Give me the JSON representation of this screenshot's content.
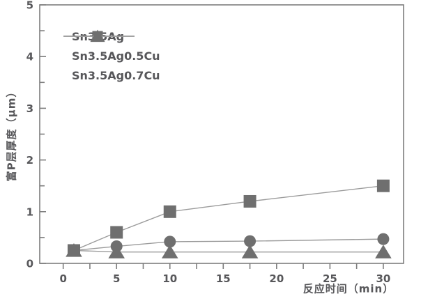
{
  "chart_data": {
    "type": "line",
    "title": "",
    "xlabel": "反应时间（min）",
    "ylabel": "富P层厚度（μm）",
    "x": [
      1,
      5,
      10,
      17.5,
      30
    ],
    "series": [
      {
        "name": "Sn3.5Ag",
        "marker": "square",
        "values": [
          0.25,
          0.6,
          1.0,
          1.2,
          1.5
        ]
      },
      {
        "name": "Sn3.5Ag0.5Cu",
        "marker": "circle",
        "values": [
          0.25,
          0.33,
          0.42,
          0.43,
          0.47
        ]
      },
      {
        "name": "Sn3.5Ag0.7Cu",
        "marker": "triangle",
        "values": [
          0.25,
          0.22,
          0.22,
          0.22,
          0.22
        ]
      }
    ],
    "xlim": [
      -2.2,
      31.9
    ],
    "ylim": [
      0,
      5
    ],
    "xticks": [
      0,
      5,
      10,
      15,
      20,
      25,
      30
    ],
    "yticks": [
      0,
      1,
      2,
      3,
      4,
      5
    ],
    "x_minor_step": 2.5,
    "y_minor_step": 0.5,
    "grid": false,
    "legend_position": "upper-left-inside",
    "colors": {
      "marker": "#6f6f6f",
      "line": "#9b9b9b",
      "spine": "#7d7d7d",
      "text": "#57575a",
      "background": "#ffffff"
    }
  }
}
